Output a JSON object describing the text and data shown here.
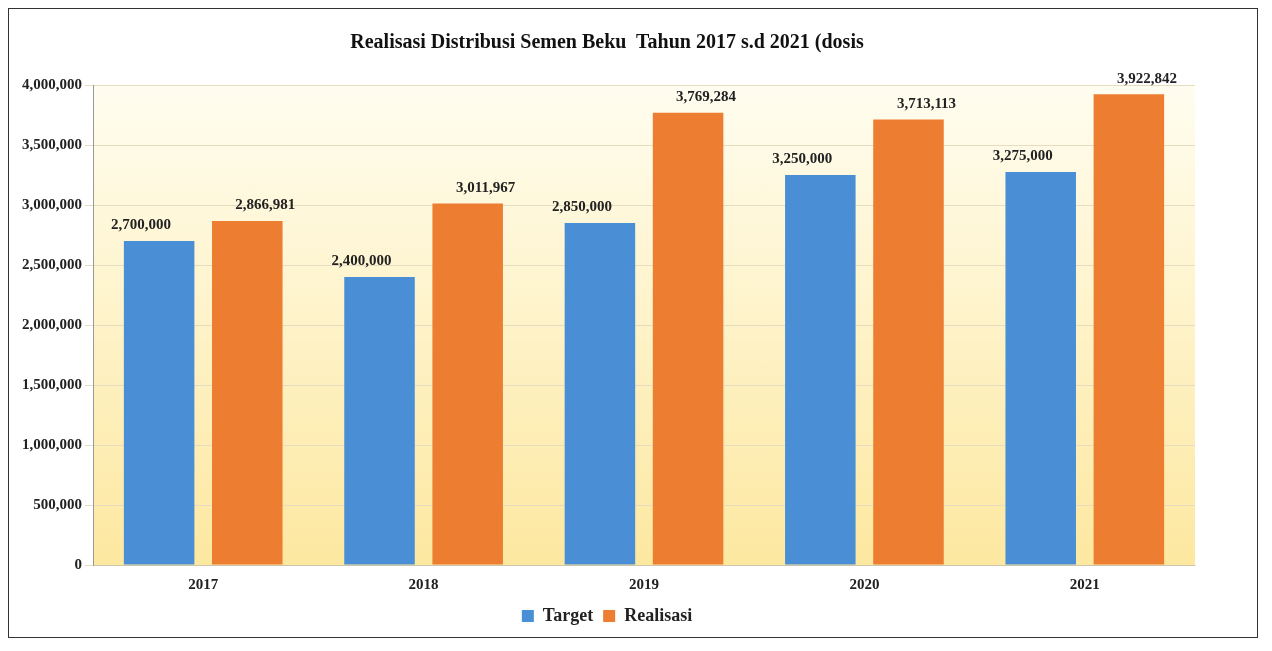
{
  "chart_data": {
    "type": "bar",
    "title": "Realisasi Distribusi Semen Beku  Tahun 2017 s.d 2021 (dosis",
    "categories": [
      "2017",
      "2018",
      "2019",
      "2020",
      "2021"
    ],
    "series": [
      {
        "name": "Target",
        "color": "#4a8fd6",
        "values": [
          2700000,
          2400000,
          2850000,
          3250000,
          3275000
        ],
        "value_labels": [
          "2,700,000",
          "2,400,000",
          "2,850,000",
          "3,250,000",
          "3,275,000"
        ]
      },
      {
        "name": "Realisasi",
        "color": "#ed7d31",
        "values": [
          2866981,
          3011967,
          3769284,
          3713113,
          3922842
        ],
        "value_labels": [
          "2,866,981",
          "3,011,967",
          "3,769,284",
          "3,713,113",
          "3,922,842"
        ]
      }
    ],
    "ylim": [
      0,
      4000000
    ],
    "yticks": [
      {
        "value": 0,
        "label": "0"
      },
      {
        "value": 500000,
        "label": "500,000"
      },
      {
        "value": 1000000,
        "label": "1,000,000"
      },
      {
        "value": 1500000,
        "label": "1,500,000"
      },
      {
        "value": 2000000,
        "label": "2,000,000"
      },
      {
        "value": 2500000,
        "label": "2,500,000"
      },
      {
        "value": 3000000,
        "label": "3,000,000"
      },
      {
        "value": 3500000,
        "label": "3,500,000"
      },
      {
        "value": 4000000,
        "label": "4,000,000"
      }
    ],
    "grid": "y",
    "legend": "bottom"
  }
}
